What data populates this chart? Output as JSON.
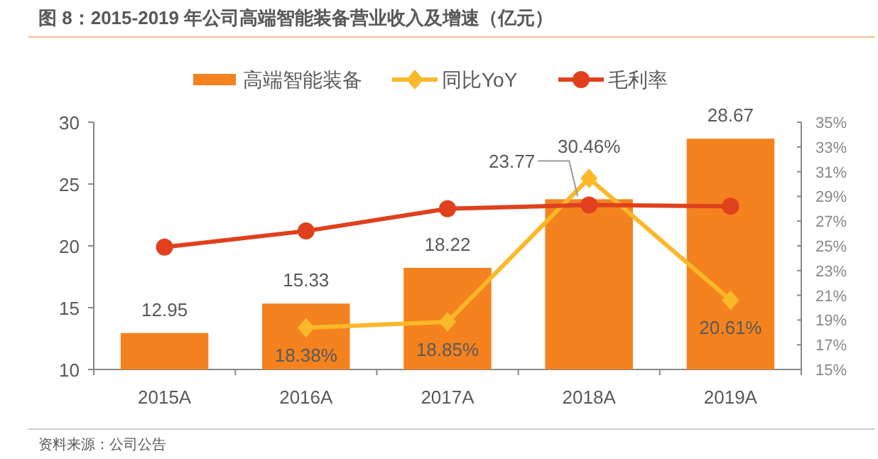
{
  "chart_data": {
    "type": "bar",
    "title": "图 8：2015-2019 年公司高端智能装备营业收入及增速（亿元）",
    "categories": [
      "2015A",
      "2016A",
      "2017A",
      "2018A",
      "2019A"
    ],
    "series": [
      {
        "name": "高端智能装备",
        "color": "#f4821f",
        "values": [
          12.95,
          15.33,
          18.22,
          23.77,
          28.67
        ],
        "value_labels": [
          "12.95",
          "15.33",
          "18.22",
          "23.77",
          "28.67"
        ]
      },
      {
        "name": "同比YoY",
        "type": "line",
        "axis": "y2",
        "color": "#fbb829",
        "marker": "diamond",
        "values": [
          null,
          18.38,
          18.85,
          30.46,
          20.61
        ],
        "value_labels": [
          null,
          "18.38%",
          "18.85%",
          "30.46%",
          "20.61%"
        ]
      },
      {
        "name": "毛利率",
        "type": "line",
        "axis": "y2",
        "color": "#e0401d",
        "marker": "circle",
        "values": [
          24.9,
          26.2,
          28.0,
          28.3,
          28.2
        ]
      }
    ],
    "ylim": [
      10,
      30
    ],
    "yticks": [
      10,
      15,
      20,
      25,
      30
    ],
    "y2lim": [
      15,
      35
    ],
    "y2ticks": [
      {
        "value": 15,
        "label": "15%"
      },
      {
        "value": 17,
        "label": "17%"
      },
      {
        "value": 19,
        "label": "19%"
      },
      {
        "value": 21,
        "label": "21%"
      },
      {
        "value": 23,
        "label": "23%"
      },
      {
        "value": 25,
        "label": "25%"
      },
      {
        "value": 27,
        "label": "27%"
      },
      {
        "value": 29,
        "label": "29%"
      },
      {
        "value": 31,
        "label": "31%"
      },
      {
        "value": 33,
        "label": "33%"
      },
      {
        "value": 35,
        "label": "35%"
      }
    ],
    "grid": false,
    "legend": "top",
    "annotations": [
      "资料来源：公司公告"
    ]
  }
}
